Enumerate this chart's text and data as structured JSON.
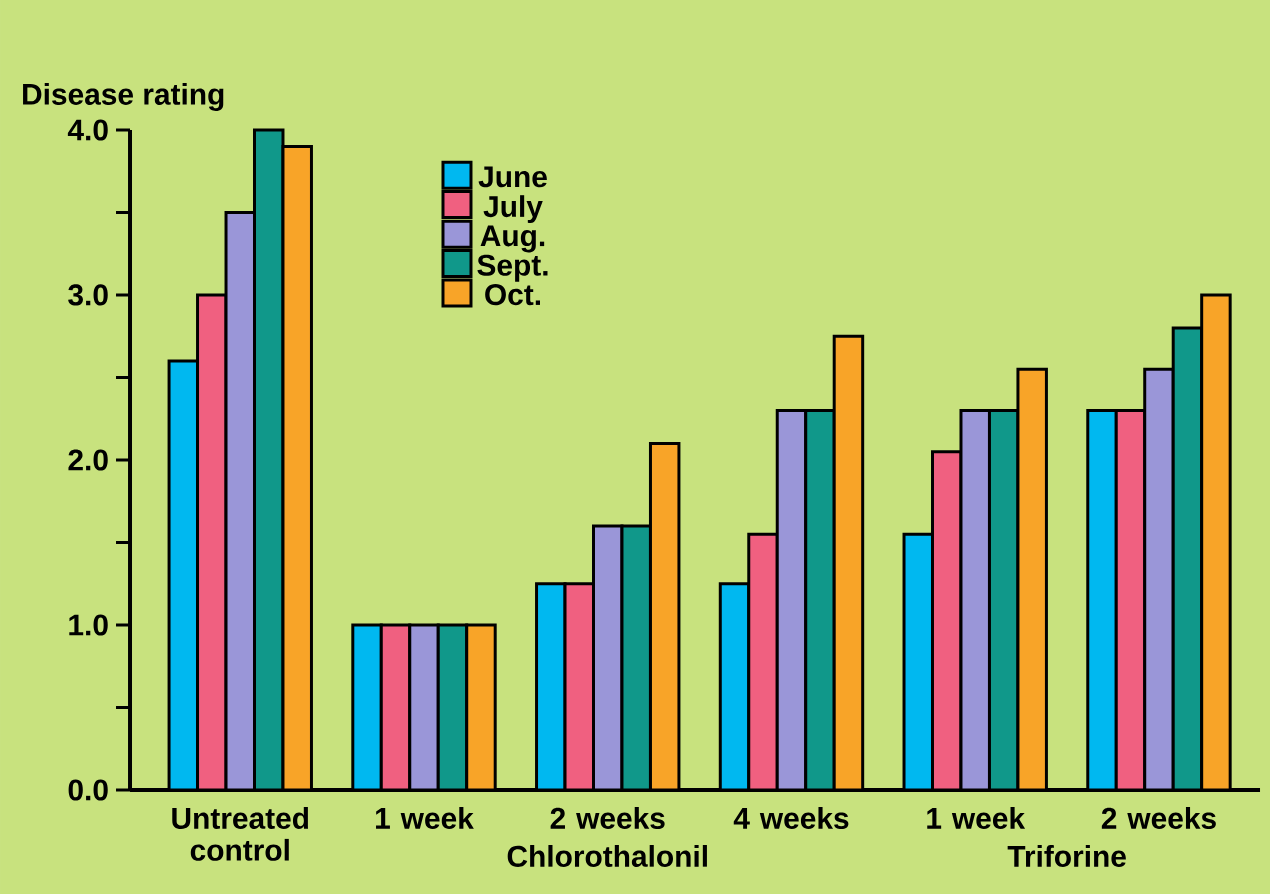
{
  "chart_data": {
    "type": "bar",
    "ylabel": "Disease rating",
    "categories": [
      "Untreated control",
      "1 week",
      "2 weeks",
      "4 weeks",
      "1 week",
      "2 weeks"
    ],
    "series": [
      {
        "name": "June",
        "color": "#00b8f0",
        "values": [
          2.6,
          1.0,
          1.25,
          1.25,
          1.55,
          2.3
        ]
      },
      {
        "name": "July",
        "color": "#f06080",
        "values": [
          3.0,
          1.0,
          1.25,
          1.55,
          2.05,
          2.3
        ]
      },
      {
        "name": "Aug.",
        "color": "#9a96d8",
        "values": [
          3.5,
          1.0,
          1.6,
          2.3,
          2.3,
          2.55
        ]
      },
      {
        "name": "Sept.",
        "color": "#10988a",
        "values": [
          4.0,
          1.0,
          1.6,
          2.3,
          2.3,
          2.8
        ]
      },
      {
        "name": "Oct.",
        "color": "#f8a428",
        "values": [
          3.9,
          1.0,
          2.1,
          2.75,
          2.55,
          3.0
        ]
      }
    ],
    "ylim": [
      0,
      4.0
    ],
    "yticks": [
      {
        "value": 0,
        "label": "0.0"
      },
      {
        "value": 0.5,
        "label": null
      },
      {
        "value": 1,
        "label": "1.0"
      },
      {
        "value": 1.5,
        "label": null
      },
      {
        "value": 2,
        "label": "2.0"
      },
      {
        "value": 2.5,
        "label": null
      },
      {
        "value": 3,
        "label": "3.0"
      },
      {
        "value": 3.5,
        "label": null
      },
      {
        "value": 4,
        "label": "4.0"
      }
    ],
    "annotations": [
      "Chlorothalonil",
      "Triforine"
    ],
    "legend": "top left",
    "grid": false
  }
}
